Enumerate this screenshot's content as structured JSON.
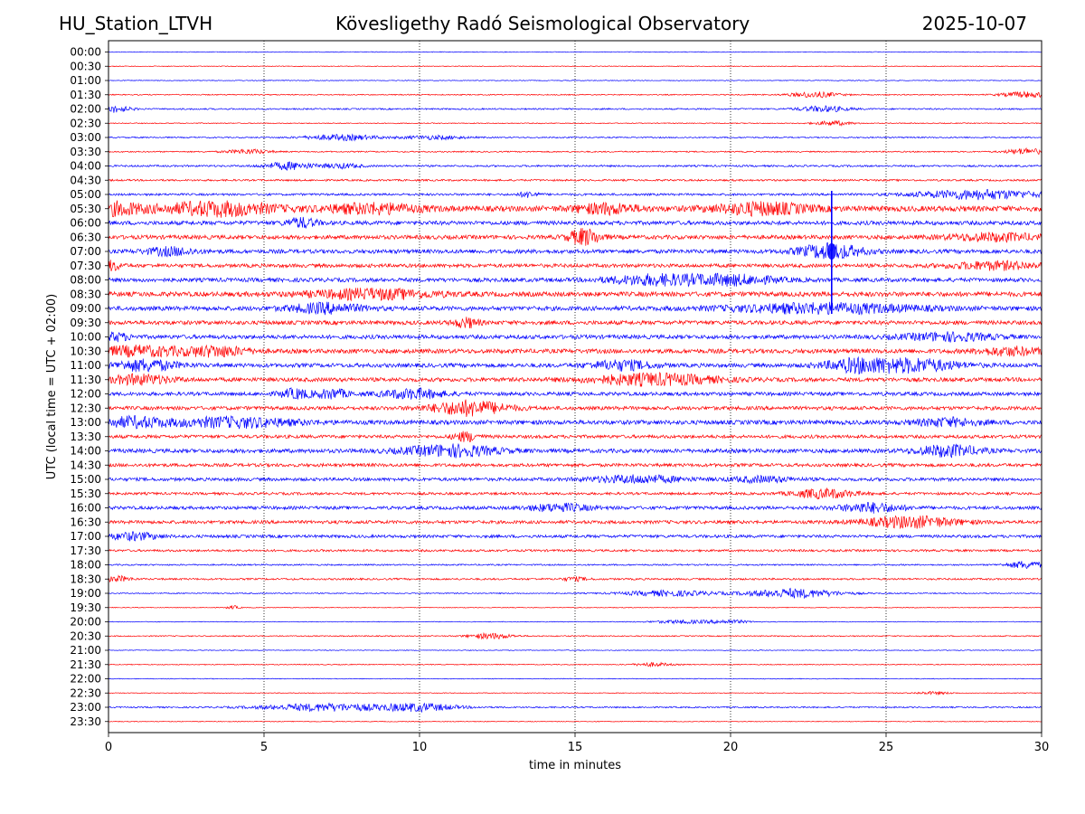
{
  "header": {
    "station": "HU_Station_LTVH",
    "observatory": "Kövesligethy Radó Seismological Observatory",
    "date": "2025-10-07"
  },
  "chart_data": {
    "type": "helicorder",
    "title": "Kövesligethy Radó Seismological Observatory",
    "xlabel": "time in minutes",
    "ylabel": "UTC (local time = UTC + 02:00)",
    "xlim": [
      0,
      30
    ],
    "xticks": [
      0,
      5,
      10,
      15,
      20,
      25,
      30
    ],
    "grid": "vertical dotted at each x tick",
    "colors": {
      "even_row": "#0000ff",
      "odd_row": "#ff0000"
    },
    "rows": [
      {
        "label": "00:00",
        "noise": 0.4,
        "bursts": []
      },
      {
        "label": "00:30",
        "noise": 0.4,
        "bursts": []
      },
      {
        "label": "01:00",
        "noise": 0.4,
        "bursts": []
      },
      {
        "label": "01:30",
        "noise": 0.6,
        "bursts": [
          {
            "t": 22.7,
            "w": 0.8,
            "a": 3
          },
          {
            "t": 29.5,
            "w": 0.8,
            "a": 3
          }
        ]
      },
      {
        "label": "02:00",
        "noise": 0.8,
        "bursts": [
          {
            "t": 0.2,
            "w": 0.5,
            "a": 3.5
          },
          {
            "t": 23.0,
            "w": 0.8,
            "a": 3
          }
        ]
      },
      {
        "label": "02:30",
        "noise": 0.5,
        "bursts": [
          {
            "t": 23.3,
            "w": 0.6,
            "a": 2.5
          }
        ]
      },
      {
        "label": "03:00",
        "noise": 0.7,
        "bursts": [
          {
            "t": 7.5,
            "w": 1.2,
            "a": 3
          },
          {
            "t": 10.5,
            "w": 1.0,
            "a": 2
          }
        ]
      },
      {
        "label": "03:30",
        "noise": 0.7,
        "bursts": [
          {
            "t": 4.5,
            "w": 0.7,
            "a": 2.5
          },
          {
            "t": 29.5,
            "w": 0.6,
            "a": 3.5
          }
        ]
      },
      {
        "label": "04:00",
        "noise": 1.0,
        "bursts": [
          {
            "t": 5.8,
            "w": 0.8,
            "a": 4
          },
          {
            "t": 7.5,
            "w": 0.6,
            "a": 2.5
          }
        ]
      },
      {
        "label": "04:30",
        "noise": 1.0,
        "bursts": []
      },
      {
        "label": "05:00",
        "noise": 1.2,
        "bursts": [
          {
            "t": 13.5,
            "w": 0.3,
            "a": 3
          },
          {
            "t": 28.0,
            "w": 2.0,
            "a": 5
          }
        ]
      },
      {
        "label": "05:30",
        "noise": 3.0,
        "bursts": [
          {
            "t": 0.3,
            "w": 0.8,
            "a": 6
          },
          {
            "t": 3.5,
            "w": 1.8,
            "a": 7
          },
          {
            "t": 8.5,
            "w": 1.5,
            "a": 5
          },
          {
            "t": 16.0,
            "w": 1.0,
            "a": 5
          },
          {
            "t": 21.0,
            "w": 1.5,
            "a": 6
          }
        ]
      },
      {
        "label": "06:00",
        "noise": 2.2,
        "bursts": [
          {
            "t": 6.2,
            "w": 0.5,
            "a": 5
          }
        ]
      },
      {
        "label": "06:30",
        "noise": 2.2,
        "bursts": [
          {
            "t": 15.3,
            "w": 0.5,
            "a": 9
          },
          {
            "t": 28.5,
            "w": 1.5,
            "a": 4
          }
        ]
      },
      {
        "label": "07:00",
        "noise": 2.2,
        "bursts": [
          {
            "t": 2.0,
            "w": 0.8,
            "a": 4
          },
          {
            "t": 23.2,
            "w": 1.0,
            "a": 8
          }
        ]
      },
      {
        "label": "07:30",
        "noise": 2.0,
        "bursts": [
          {
            "t": 0.1,
            "w": 0.3,
            "a": 5
          },
          {
            "t": 28.5,
            "w": 1.5,
            "a": 4
          }
        ]
      },
      {
        "label": "08:00",
        "noise": 2.2,
        "bursts": [
          {
            "t": 17.5,
            "w": 1.5,
            "a": 5
          },
          {
            "t": 20.0,
            "w": 1.5,
            "a": 5
          }
        ]
      },
      {
        "label": "08:30",
        "noise": 2.6,
        "bursts": [
          {
            "t": 8.5,
            "w": 2.0,
            "a": 5
          }
        ]
      },
      {
        "label": "09:00",
        "noise": 2.4,
        "bursts": [
          {
            "t": 7.0,
            "w": 1.2,
            "a": 5
          },
          {
            "t": 23.0,
            "w": 3.0,
            "a": 5
          }
        ]
      },
      {
        "label": "09:30",
        "noise": 2.2,
        "bursts": [
          {
            "t": 11.5,
            "w": 0.4,
            "a": 5
          }
        ]
      },
      {
        "label": "10:00",
        "noise": 2.2,
        "bursts": [
          {
            "t": 0.2,
            "w": 0.5,
            "a": 4
          },
          {
            "t": 27.0,
            "w": 1.5,
            "a": 4
          }
        ]
      },
      {
        "label": "10:30",
        "noise": 2.4,
        "bursts": [
          {
            "t": 1.0,
            "w": 1.5,
            "a": 5
          },
          {
            "t": 3.5,
            "w": 1.0,
            "a": 5
          },
          {
            "t": 29.0,
            "w": 1.0,
            "a": 4
          }
        ]
      },
      {
        "label": "11:00",
        "noise": 2.2,
        "bursts": [
          {
            "t": 1.2,
            "w": 1.0,
            "a": 6
          },
          {
            "t": 16.5,
            "w": 1.0,
            "a": 5
          },
          {
            "t": 24.0,
            "w": 1.0,
            "a": 6
          },
          {
            "t": 25.8,
            "w": 1.5,
            "a": 7
          }
        ]
      },
      {
        "label": "11:30",
        "noise": 2.2,
        "bursts": [
          {
            "t": 1.0,
            "w": 1.0,
            "a": 5
          },
          {
            "t": 17.5,
            "w": 2.0,
            "a": 6
          }
        ]
      },
      {
        "label": "12:00",
        "noise": 2.0,
        "bursts": [
          {
            "t": 6.0,
            "w": 0.5,
            "a": 5
          },
          {
            "t": 7.2,
            "w": 0.5,
            "a": 5
          },
          {
            "t": 9.8,
            "w": 1.0,
            "a": 5
          }
        ]
      },
      {
        "label": "12:30",
        "noise": 2.0,
        "bursts": [
          {
            "t": 11.6,
            "w": 1.2,
            "a": 8
          }
        ]
      },
      {
        "label": "13:00",
        "noise": 2.4,
        "bursts": [
          {
            "t": 0.8,
            "w": 1.0,
            "a": 5
          },
          {
            "t": 4.0,
            "w": 2.0,
            "a": 5
          },
          {
            "t": 27.0,
            "w": 1.0,
            "a": 4
          }
        ]
      },
      {
        "label": "13:30",
        "noise": 1.8,
        "bursts": [
          {
            "t": 11.5,
            "w": 0.4,
            "a": 5
          }
        ]
      },
      {
        "label": "14:00",
        "noise": 2.2,
        "bursts": [
          {
            "t": 11.0,
            "w": 1.5,
            "a": 6
          },
          {
            "t": 27.0,
            "w": 1.0,
            "a": 6
          }
        ]
      },
      {
        "label": "14:30",
        "noise": 1.8,
        "bursts": []
      },
      {
        "label": "15:00",
        "noise": 1.8,
        "bursts": [
          {
            "t": 17.0,
            "w": 1.5,
            "a": 4
          },
          {
            "t": 21.0,
            "w": 1.0,
            "a": 3
          }
        ]
      },
      {
        "label": "15:30",
        "noise": 1.4,
        "bursts": [
          {
            "t": 23.0,
            "w": 1.0,
            "a": 5
          }
        ]
      },
      {
        "label": "16:00",
        "noise": 1.8,
        "bursts": [
          {
            "t": 14.5,
            "w": 1.0,
            "a": 4
          },
          {
            "t": 24.5,
            "w": 1.0,
            "a": 5
          }
        ]
      },
      {
        "label": "16:30",
        "noise": 1.8,
        "bursts": [
          {
            "t": 25.8,
            "w": 1.5,
            "a": 6
          }
        ]
      },
      {
        "label": "17:00",
        "noise": 1.6,
        "bursts": [
          {
            "t": 0.8,
            "w": 0.8,
            "a": 4
          }
        ]
      },
      {
        "label": "17:30",
        "noise": 1.2,
        "bursts": []
      },
      {
        "label": "18:00",
        "noise": 0.8,
        "bursts": [
          {
            "t": 29.5,
            "w": 0.6,
            "a": 4
          }
        ]
      },
      {
        "label": "18:30",
        "noise": 1.0,
        "bursts": [
          {
            "t": 0.3,
            "w": 0.4,
            "a": 3
          },
          {
            "t": 15.0,
            "w": 0.4,
            "a": 2
          }
        ]
      },
      {
        "label": "19:00",
        "noise": 0.6,
        "bursts": [
          {
            "t": 18.0,
            "w": 1.5,
            "a": 3
          },
          {
            "t": 22.0,
            "w": 1.5,
            "a": 5
          }
        ]
      },
      {
        "label": "19:30",
        "noise": 0.4,
        "bursts": [
          {
            "t": 4.0,
            "w": 0.2,
            "a": 2
          }
        ]
      },
      {
        "label": "20:00",
        "noise": 0.4,
        "bursts": [
          {
            "t": 18.5,
            "w": 1.0,
            "a": 2
          },
          {
            "t": 20.0,
            "w": 0.6,
            "a": 2
          }
        ]
      },
      {
        "label": "20:30",
        "noise": 0.6,
        "bursts": [
          {
            "t": 12.3,
            "w": 0.7,
            "a": 3
          }
        ]
      },
      {
        "label": "21:00",
        "noise": 0.4,
        "bursts": []
      },
      {
        "label": "21:30",
        "noise": 0.5,
        "bursts": [
          {
            "t": 17.5,
            "w": 0.6,
            "a": 2
          }
        ]
      },
      {
        "label": "22:00",
        "noise": 0.4,
        "bursts": []
      },
      {
        "label": "22:30",
        "noise": 0.4,
        "bursts": [
          {
            "t": 26.5,
            "w": 0.6,
            "a": 1.5
          }
        ]
      },
      {
        "label": "23:00",
        "noise": 0.8,
        "bursts": [
          {
            "t": 7.0,
            "w": 2.0,
            "a": 4
          },
          {
            "t": 10.0,
            "w": 1.2,
            "a": 4
          }
        ]
      },
      {
        "label": "23:30",
        "noise": 0.4,
        "bursts": []
      }
    ],
    "events": [
      {
        "t": 23.25,
        "from_row": "05:00",
        "to_row": "09:00",
        "peak_row": "07:00",
        "color": "#0000ff"
      }
    ]
  }
}
